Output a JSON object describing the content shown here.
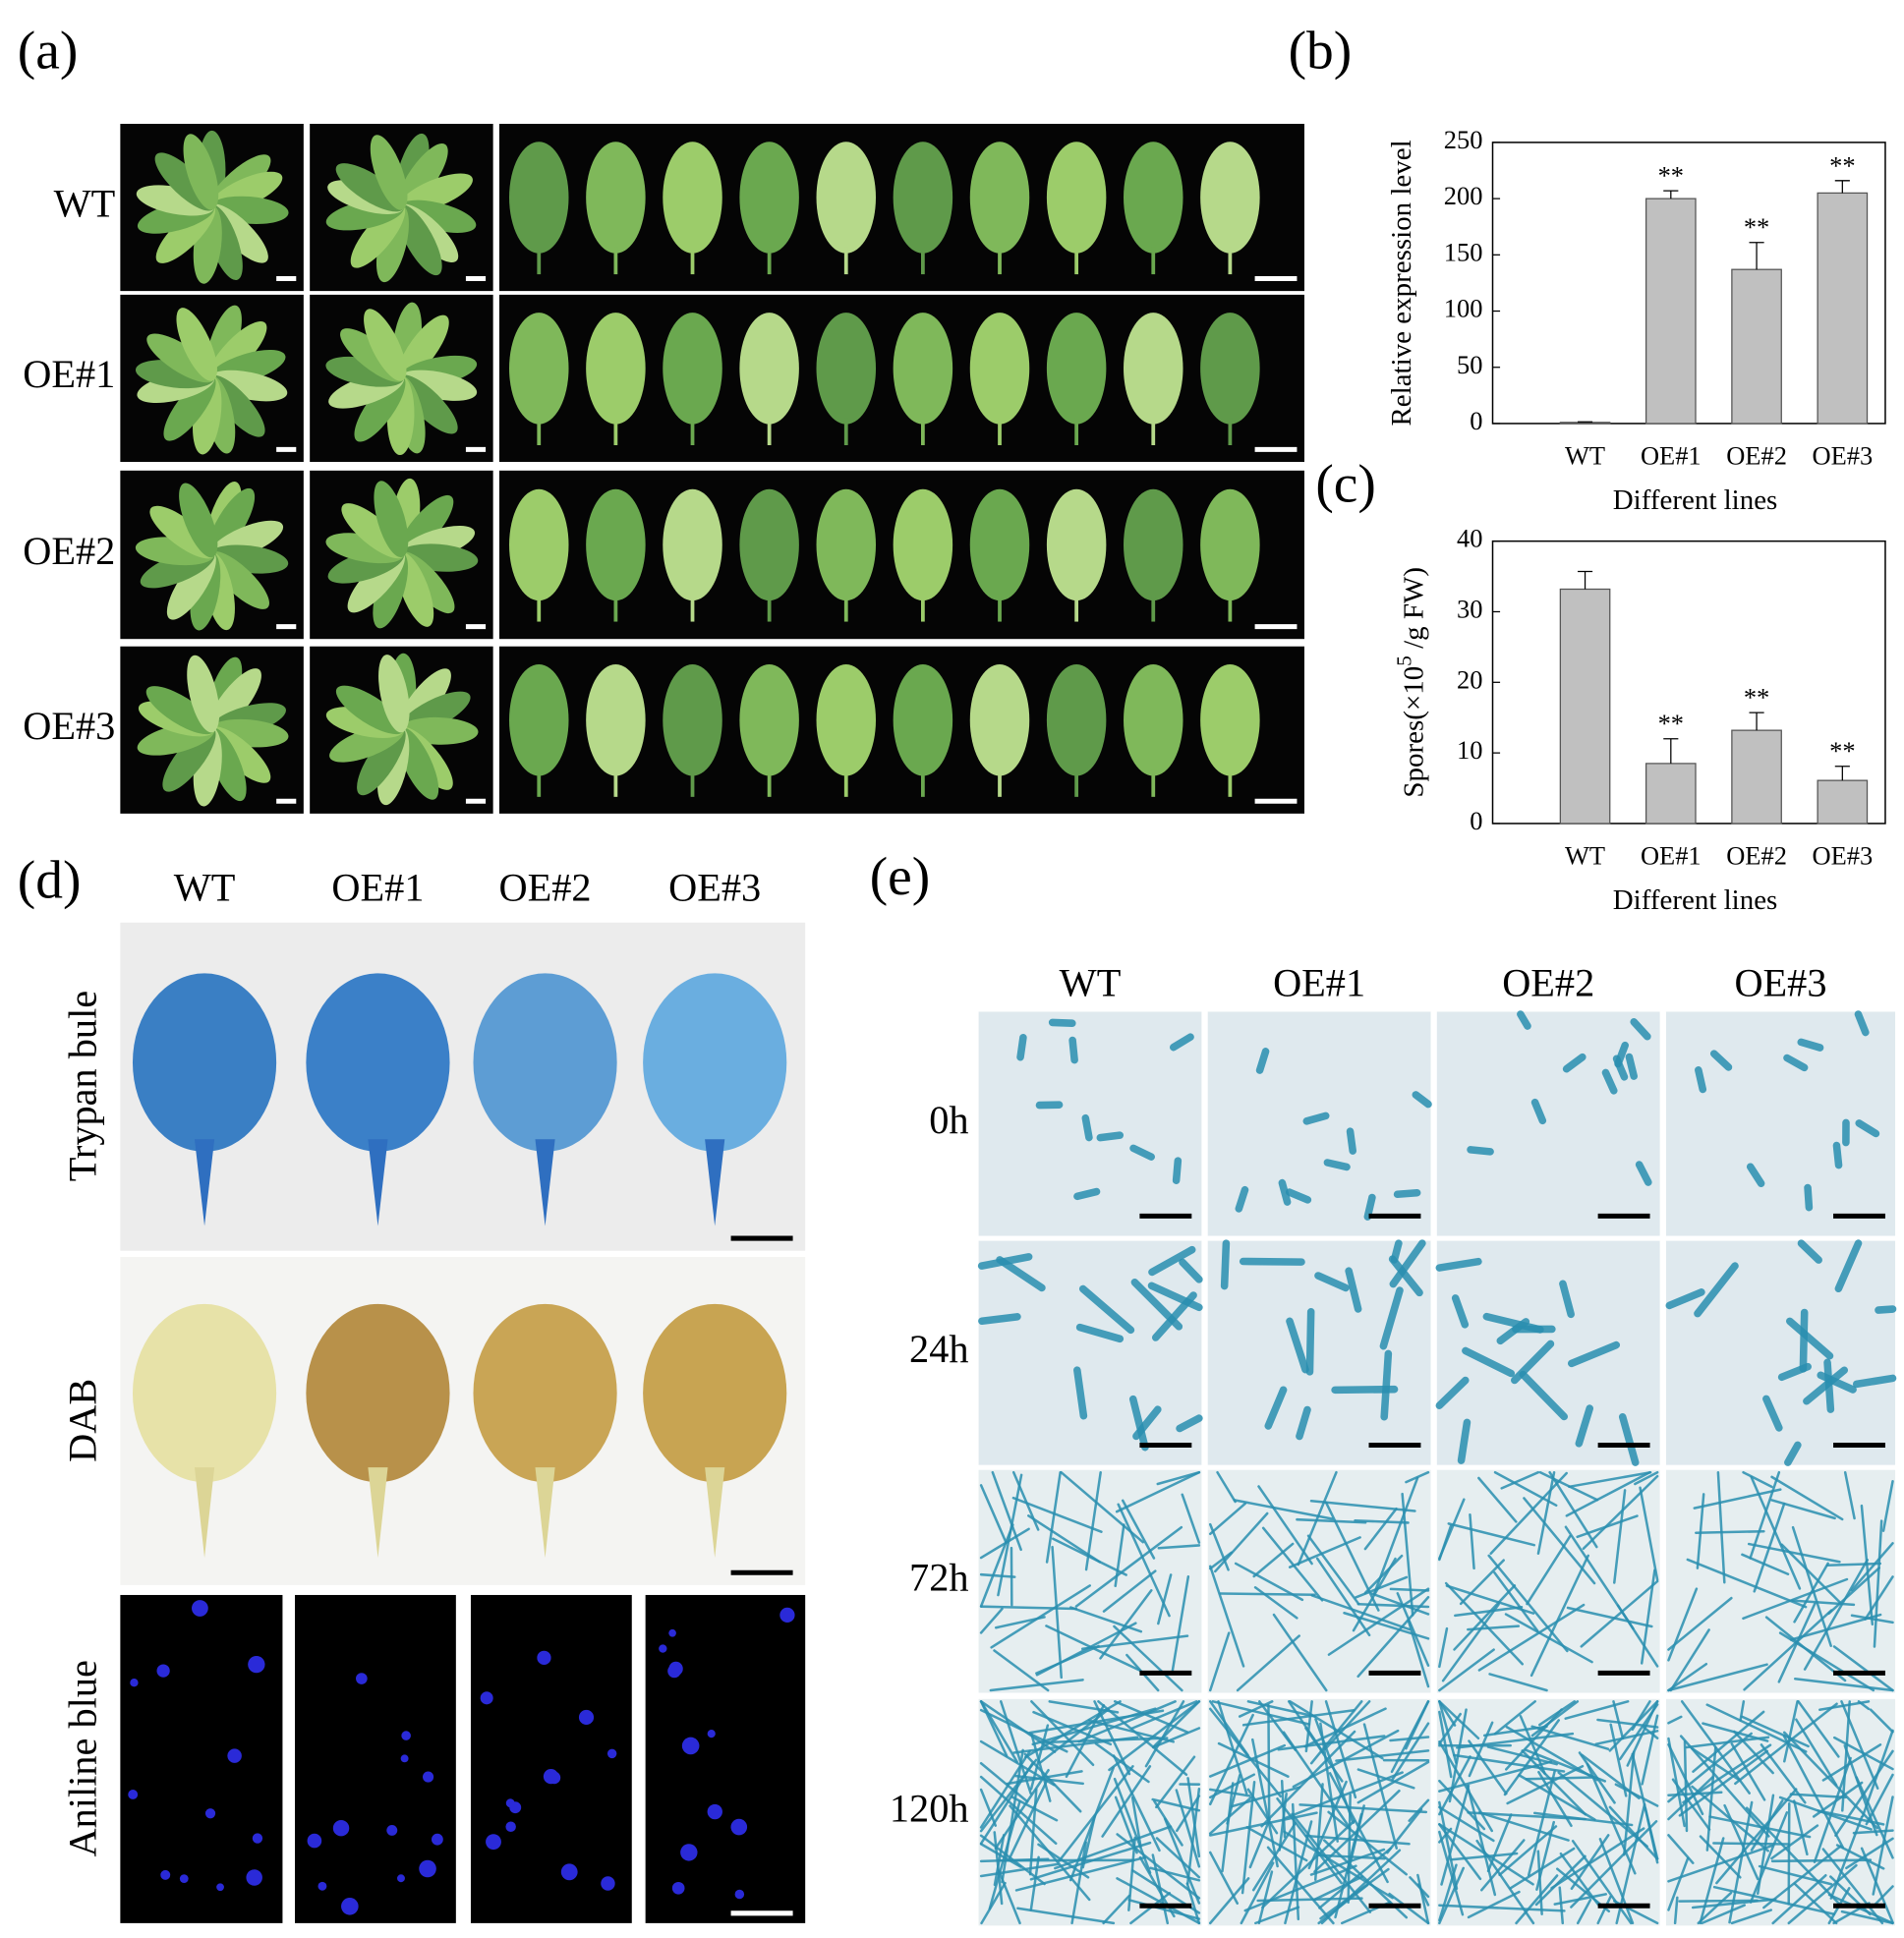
{
  "panel_a": {
    "label": "(a)",
    "rows": [
      "WT",
      "OE#1",
      "OE#2",
      "OE#3"
    ]
  },
  "chart_data": [
    {
      "type": "bar",
      "label": "(b)",
      "ylabel": "Relative expression level",
      "xlabel": "Different lines",
      "categories": [
        "WT",
        "OE#1",
        "OE#2",
        "OE#3"
      ],
      "values": [
        1,
        200,
        137,
        205
      ],
      "errors": [
        0.5,
        7,
        24,
        11
      ],
      "significance": [
        null,
        "**",
        "**",
        "**"
      ],
      "color": "#c0c0c0",
      "ylim": [
        0,
        250
      ],
      "yticks": [
        0,
        50,
        100,
        150,
        200,
        250
      ]
    },
    {
      "type": "bar",
      "label": "(c)",
      "ylabel": "Spores(×10",
      "ylabel_sup": "5",
      "ylabel_end": " /g FW)",
      "xlabel": "Different lines",
      "categories": [
        "WT",
        "OE#1",
        "OE#2",
        "OE#3"
      ],
      "values": [
        33.2,
        8.5,
        13.2,
        6.1
      ],
      "errors": [
        2.5,
        3.5,
        2.5,
        2.0
      ],
      "significance": [
        null,
        "**",
        "**",
        "**"
      ],
      "color": "#c0c0c0",
      "ylim": [
        0,
        40
      ],
      "yticks": [
        0,
        10,
        20,
        30,
        40
      ]
    }
  ],
  "panel_d": {
    "label": "(d)",
    "columns": [
      "WT",
      "OE#1",
      "OE#2",
      "OE#3"
    ],
    "rows": [
      "Trypan bule",
      "DAB",
      "Aniline blue"
    ]
  },
  "panel_e": {
    "label": "(e)",
    "columns": [
      "WT",
      "OE#1",
      "OE#2",
      "OE#3"
    ],
    "rows": [
      "0h",
      "24h",
      "72h",
      "120h"
    ]
  }
}
